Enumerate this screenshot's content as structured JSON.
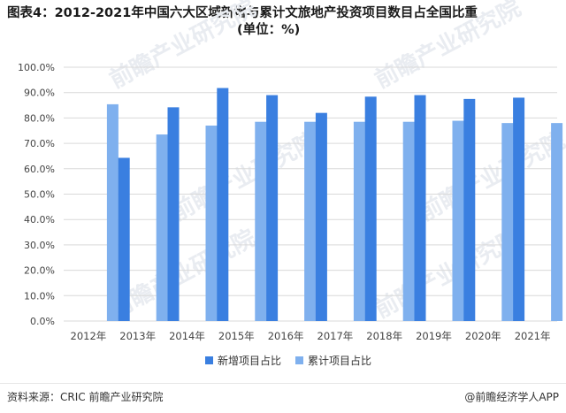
{
  "title_line1": "图表4：2012-2021年中国六大区域新增与累计文旅地产投资项目数目占全国比重",
  "title_line2": "(单位：%)",
  "source": "资料来源：CRIC 前瞻产业研究院",
  "credit": "@前瞻经济学人APP",
  "watermark": "前瞻产业研究院",
  "colors": {
    "new": "#3a7fe0",
    "cumulative": "#7fb0ee",
    "grid": "#d9d9d9"
  },
  "chart_data": {
    "type": "bar",
    "categories": [
      "2012年",
      "2013年",
      "2014年",
      "2015年",
      "2016年",
      "2017年",
      "2018年",
      "2019年",
      "2020年",
      "2021年"
    ],
    "series": [
      {
        "name": "新增项目占比",
        "values": [
          null,
          64.3,
          84.2,
          91.8,
          89.0,
          82.0,
          88.4,
          89.0,
          87.5,
          88.0
        ]
      },
      {
        "name": "累计项目占比",
        "values": [
          85.4,
          73.5,
          77.0,
          78.5,
          78.5,
          78.5,
          78.5,
          78.9,
          78.0,
          78.0
        ]
      }
    ],
    "yticks": [
      "0.0%",
      "10.0%",
      "20.0%",
      "30.0%",
      "40.0%",
      "50.0%",
      "60.0%",
      "70.0%",
      "80.0%",
      "90.0%",
      "100.0%"
    ],
    "ylim": [
      0,
      100
    ],
    "grid": true,
    "legend_position": "bottom-center"
  }
}
